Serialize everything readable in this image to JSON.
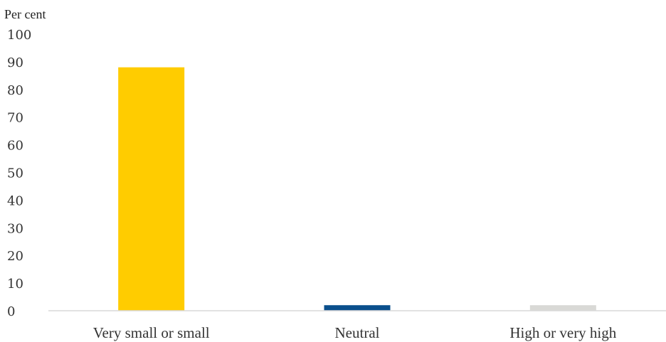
{
  "chart_data": {
    "type": "bar",
    "ylabel": "Per cent",
    "categories": [
      "Very small or small",
      "Neutral",
      "High or very high"
    ],
    "values": [
      88,
      2,
      2
    ],
    "colors": [
      "#ffcc00",
      "#0a4f8c",
      "#d9d9d6"
    ],
    "ylim": [
      0,
      100
    ],
    "yticks": [
      "0",
      "10",
      "20",
      "30",
      "40",
      "50",
      "60",
      "70",
      "80",
      "90",
      "100"
    ],
    "grid": false,
    "legend": "none"
  }
}
